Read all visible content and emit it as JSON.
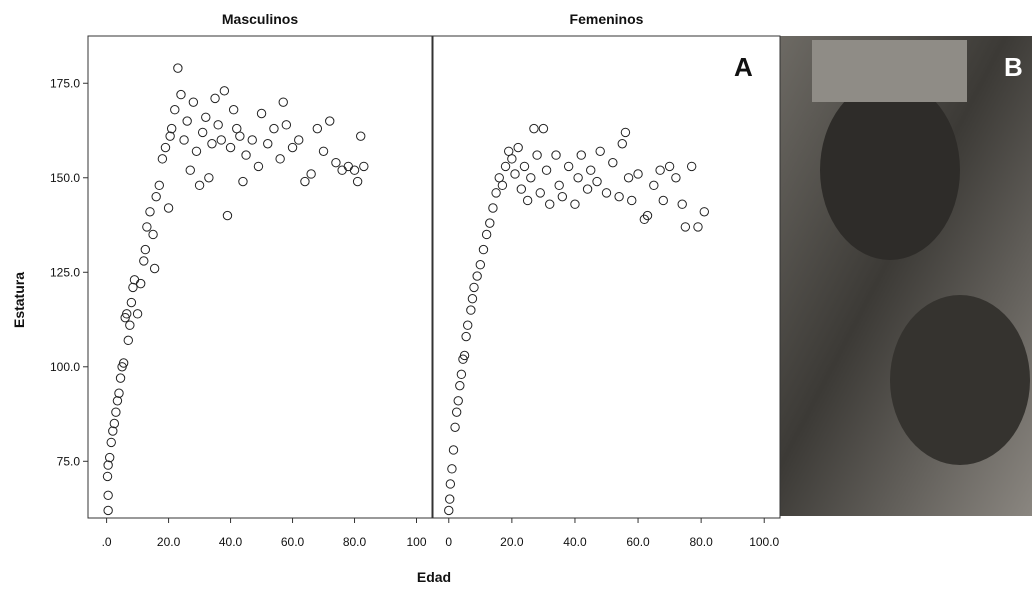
{
  "chart_data": [
    {
      "type": "scatter",
      "title": "Masculinos",
      "panel_label": "A",
      "ylabel": "Estatura",
      "xlabel": "Edad",
      "xlim": [
        -6,
        105
      ],
      "ylim": [
        60,
        187.5
      ],
      "xticks": [
        {
          "value": 0,
          "label": ".0"
        },
        {
          "value": 20,
          "label": "20.0"
        },
        {
          "value": 40,
          "label": "40.0"
        },
        {
          "value": 60,
          "label": "60.0"
        },
        {
          "value": 80,
          "label": "80.0"
        },
        100
      ],
      "yticks": [
        {
          "value": 75,
          "label": "75.0"
        },
        {
          "value": 100,
          "label": "100.0"
        },
        {
          "value": 125,
          "label": "125.0"
        },
        {
          "value": 150,
          "label": "150.0"
        },
        {
          "value": 175,
          "label": "175.0"
        }
      ],
      "color": "#222222",
      "x": [
        0.5,
        0.5,
        0.3,
        0.5,
        1,
        1.5,
        2,
        2.5,
        3,
        3.5,
        4,
        4.5,
        5,
        5.5,
        6,
        6.5,
        7,
        7.5,
        8,
        8.5,
        9,
        10,
        11,
        12,
        12.5,
        13,
        14,
        15,
        15.5,
        16,
        17,
        18,
        19,
        20,
        20.5,
        21,
        22,
        23,
        24,
        25,
        26,
        27,
        28,
        29,
        30,
        31,
        32,
        33,
        34,
        35,
        36,
        37,
        38,
        39,
        40,
        41,
        42,
        43,
        44,
        45,
        47,
        49,
        50,
        52,
        54,
        56,
        57,
        58,
        60,
        62,
        64,
        66,
        68,
        70,
        72,
        74,
        76,
        78,
        80,
        81,
        82,
        83
      ],
      "values": [
        62,
        66,
        71,
        74,
        76,
        80,
        83,
        85,
        88,
        91,
        93,
        97,
        100,
        101,
        113,
        114,
        107,
        111,
        117,
        121,
        123,
        114,
        122,
        128,
        131,
        137,
        141,
        135,
        126,
        145,
        148,
        155,
        158,
        142,
        161,
        163,
        168,
        179,
        172,
        160,
        165,
        152,
        170,
        157,
        148,
        162,
        166,
        150,
        159,
        171,
        164,
        160,
        173,
        140,
        158,
        168,
        163,
        161,
        149,
        156,
        160,
        153,
        167,
        159,
        163,
        155,
        170,
        164,
        158,
        160,
        149,
        151,
        163,
        157,
        165,
        154,
        152,
        153,
        152,
        149,
        161,
        153
      ]
    },
    {
      "type": "scatter",
      "title": "Femeninos",
      "xlim": [
        -5,
        105
      ],
      "ylim": [
        60,
        187.5
      ],
      "xticks": [
        0,
        {
          "value": 20,
          "label": "20.0"
        },
        {
          "value": 40,
          "label": "40.0"
        },
        {
          "value": 60,
          "label": "60.0"
        },
        {
          "value": 80,
          "label": "80.0"
        },
        {
          "value": 100,
          "label": "100.0"
        }
      ],
      "color": "#222222",
      "x": [
        0,
        0.3,
        0.5,
        1,
        1.5,
        2,
        2.5,
        3,
        3.5,
        4,
        4.5,
        5,
        5.5,
        6,
        7,
        7.5,
        8,
        9,
        10,
        11,
        12,
        13,
        14,
        15,
        16,
        17,
        18,
        19,
        20,
        21,
        22,
        23,
        24,
        25,
        26,
        27,
        28,
        29,
        30,
        31,
        32,
        34,
        35,
        36,
        38,
        40,
        41,
        42,
        44,
        45,
        47,
        48,
        50,
        52,
        54,
        55,
        56,
        57,
        58,
        60,
        62,
        63,
        65,
        67,
        68,
        70,
        72,
        74,
        75,
        77,
        79,
        81
      ],
      "values": [
        62,
        65,
        69,
        73,
        78,
        84,
        88,
        91,
        95,
        98,
        102,
        103,
        108,
        111,
        115,
        118,
        121,
        124,
        127,
        131,
        135,
        138,
        142,
        146,
        150,
        148,
        153,
        157,
        155,
        151,
        158,
        147,
        153,
        144,
        150,
        163,
        156,
        146,
        163,
        152,
        143,
        156,
        148,
        145,
        153,
        143,
        150,
        156,
        147,
        152,
        149,
        157,
        146,
        154,
        145,
        159,
        162,
        150,
        144,
        151,
        139,
        140,
        148,
        152,
        144,
        153,
        150,
        143,
        137,
        153,
        137,
        141
      ]
    }
  ],
  "photo": {
    "label": "B"
  }
}
